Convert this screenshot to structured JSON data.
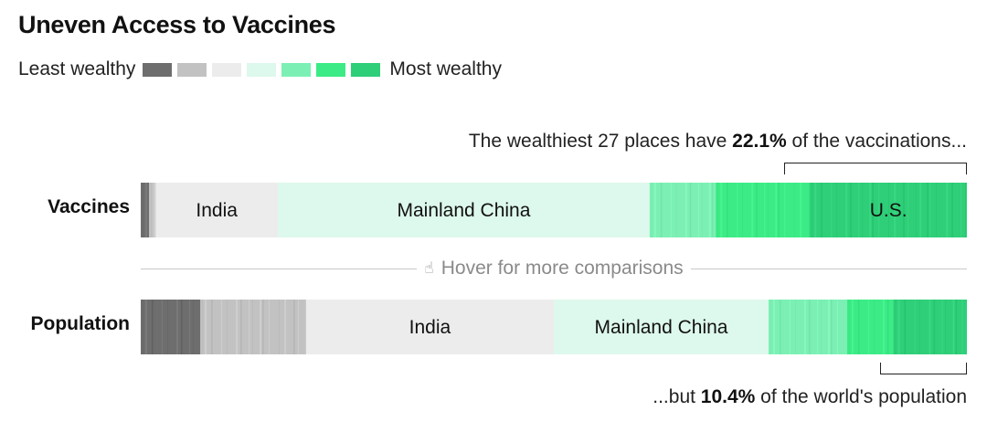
{
  "chart_data": {
    "type": "bar",
    "title": "Uneven Access to Vaccines",
    "legend": {
      "left_label": "Least wealthy",
      "right_label": "Most wealthy",
      "colors": [
        "#6e6e6e",
        "#c2c2c2",
        "#ececec",
        "#ddf8ec",
        "#7cf0b4",
        "#3ceb86",
        "#2fce78"
      ]
    },
    "categories": [
      "Vaccines",
      "Population"
    ],
    "series": [
      {
        "name": "Vaccines",
        "segments": [
          {
            "tier": 0,
            "value": 1.0
          },
          {
            "tier": 1,
            "value": 0.8
          },
          {
            "tier": 2,
            "value": 14.8,
            "label": "India"
          },
          {
            "tier": 3,
            "value": 45.0,
            "label": "Mainland China"
          },
          {
            "tier": 4,
            "value": 8.0
          },
          {
            "tier": 5,
            "value": 11.4
          },
          {
            "tier": 6,
            "value": 19.0,
            "label": "U.S."
          }
        ]
      },
      {
        "name": "Population",
        "segments": [
          {
            "tier": 0,
            "value": 7.2
          },
          {
            "tier": 1,
            "value": 12.8
          },
          {
            "tier": 2,
            "value": 30.0,
            "label": "India"
          },
          {
            "tier": 3,
            "value": 26.0,
            "label": "Mainland China"
          },
          {
            "tier": 4,
            "value": 9.5
          },
          {
            "tier": 5,
            "value": 5.6
          },
          {
            "tier": 6,
            "value": 8.9
          }
        ]
      }
    ],
    "annotations": {
      "top": {
        "prefix": "The wealthiest 27 places have ",
        "value": "22.1%",
        "suffix": " of the vaccinations..."
      },
      "bottom": {
        "prefix": "...but ",
        "value": "10.4%",
        "suffix": " of the world's population"
      }
    },
    "hover_hint": "Hover for more comparisons",
    "hover_icon": "pointer-hand-icon"
  }
}
